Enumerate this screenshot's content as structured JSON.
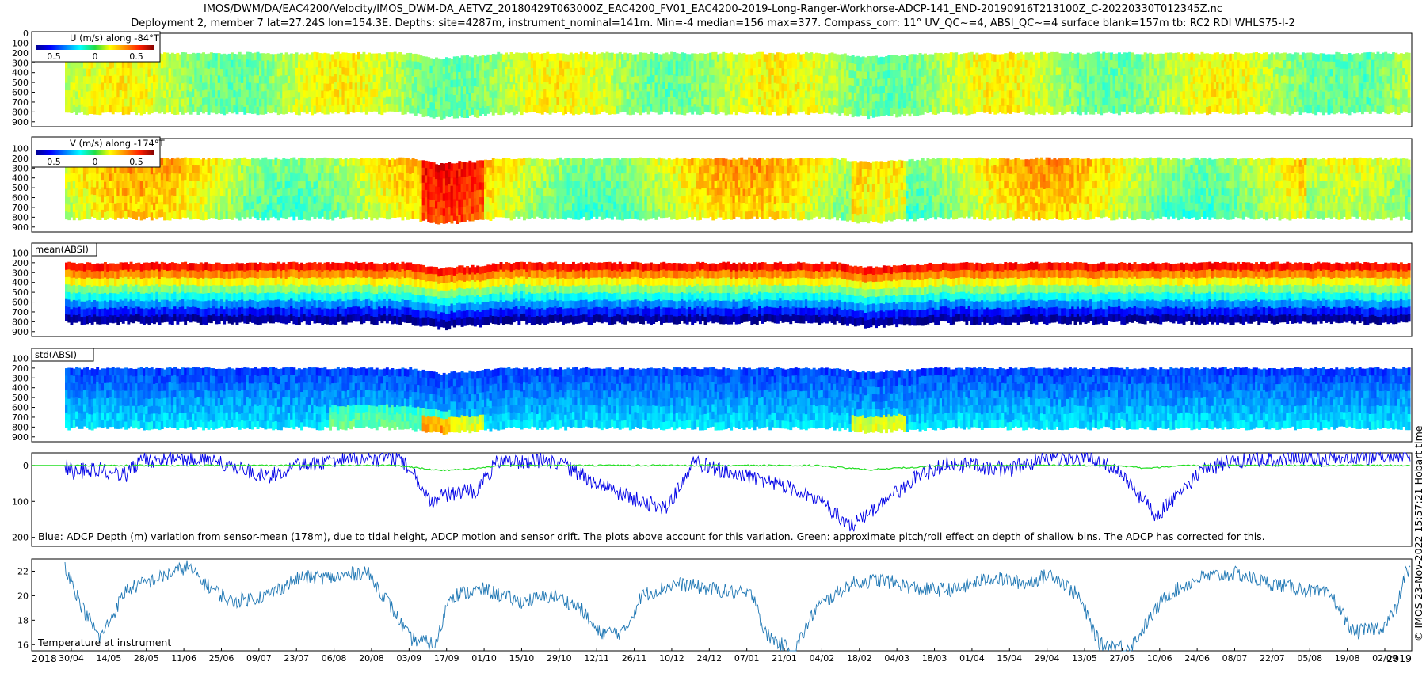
{
  "header": {
    "title": "IMOS/DWM/DA/EAC4200/Velocity/IMOS_DWM-DA_AETVZ_20180429T063000Z_EAC4200_FV01_EAC4200-2019-Long-Ranger-Workhorse-ADCP-141_END-20190916T213100Z_C-20220330T012345Z.nc",
    "subtitle": "Deployment 2, member 7 lat=27.24S lon=154.3E. Depths: site=4287m, instrument_nominal=141m. Min=-4 median=156 max=377. Compass_corr: 11° UV_QC~=4, ABSI_QC~=4 surface blank=157m tb: RC2 RDI WHLS75-I-2"
  },
  "credit": "© IMOS 23-Nov-2022 15:57:21 Hobart time",
  "colors": {
    "blue_series": "#0000e6",
    "green_series": "#22dd22",
    "temp_series": "#1f77b4"
  },
  "chart_data": [
    {
      "id": "u",
      "type": "heatmap",
      "legend_label": "U (m/s) along -84°T",
      "colorbar_ticks": [
        "0.5",
        "0",
        "0.5"
      ],
      "y_ticks": [
        "0",
        "100",
        "200",
        "300",
        "400",
        "500",
        "600",
        "700",
        "800",
        "900"
      ],
      "ylim": [
        0,
        950
      ]
    },
    {
      "id": "v",
      "type": "heatmap",
      "legend_label": "V (m/s) along -174°T",
      "colorbar_ticks": [
        "0.5",
        "0",
        "0.5"
      ],
      "y_ticks": [
        "100",
        "200",
        "300",
        "400",
        "500",
        "600",
        "700",
        "800",
        "900"
      ],
      "ylim": [
        0,
        950
      ]
    },
    {
      "id": "mean",
      "type": "heatmap",
      "legend_label": "mean(ABSI)",
      "y_ticks": [
        "100",
        "200",
        "300",
        "400",
        "500",
        "600",
        "700",
        "800",
        "900"
      ],
      "ylim": [
        0,
        950
      ]
    },
    {
      "id": "std",
      "type": "heatmap",
      "legend_label": "std(ABSI)",
      "y_ticks": [
        "100",
        "200",
        "300",
        "400",
        "500",
        "600",
        "700",
        "800",
        "900"
      ],
      "ylim": [
        0,
        950
      ]
    },
    {
      "id": "depth",
      "type": "line",
      "y_ticks": [
        "0",
        "100",
        "200"
      ],
      "ylim": [
        -35,
        225
      ],
      "annotation": "Blue: ADCP Depth (m) variation from sensor-mean (178m), due to tidal height, ADCP motion and sensor drift. The plots above account for this variation. Green: approximate pitch/roll effect on depth of shallow bins. The ADCP has corrected for this.",
      "series": [
        {
          "color": "#0000e6",
          "anchors": [
            [
              0,
              0
            ],
            [
              10,
              20
            ],
            [
              35,
              8
            ],
            [
              70,
              25
            ],
            [
              90,
              -15
            ],
            [
              160,
              -20
            ],
            [
              200,
              10
            ],
            [
              235,
              30
            ],
            [
              260,
              5
            ],
            [
              300,
              -10
            ],
            [
              330,
              -15
            ],
            [
              380,
              -18
            ],
            [
              395,
              10
            ],
            [
              420,
              100
            ],
            [
              438,
              80
            ],
            [
              470,
              70
            ],
            [
              495,
              -10
            ],
            [
              560,
              -15
            ],
            [
              610,
              50
            ],
            [
              660,
              100
            ],
            [
              690,
              120
            ],
            [
              720,
              -10
            ],
            [
              760,
              20
            ],
            [
              800,
              40
            ],
            [
              840,
              70
            ],
            [
              870,
              110
            ],
            [
              900,
              170
            ],
            [
              935,
              110
            ],
            [
              970,
              40
            ],
            [
              1010,
              -5
            ],
            [
              1050,
              5
            ],
            [
              1080,
              10
            ],
            [
              1120,
              -15
            ],
            [
              1150,
              -20
            ],
            [
              1180,
              -15
            ],
            [
              1210,
              20
            ],
            [
              1230,
              90
            ],
            [
              1250,
              140
            ],
            [
              1270,
              90
            ],
            [
              1300,
              20
            ],
            [
              1330,
              -10
            ],
            [
              1400,
              -20
            ],
            [
              1460,
              -15
            ],
            [
              1510,
              -25
            ],
            [
              1535,
              -25
            ]
          ],
          "noise": 22
        }
      ]
    },
    {
      "id": "temp",
      "type": "line",
      "y_ticks": [
        "16",
        "18",
        "20",
        "22"
      ],
      "ylim": [
        15.5,
        23
      ],
      "annotation": "Temperature at instrument",
      "x_ticks": [
        "30/04",
        "14/05",
        "28/05",
        "11/06",
        "25/06",
        "09/07",
        "23/07",
        "06/08",
        "20/08",
        "03/09",
        "17/09",
        "01/10",
        "15/10",
        "29/10",
        "12/11",
        "26/11",
        "10/12",
        "24/12",
        "07/01",
        "21/01",
        "04/02",
        "18/02",
        "04/03",
        "18/03",
        "01/04",
        "15/04",
        "29/04",
        "13/05",
        "27/05",
        "10/06",
        "24/06",
        "08/07",
        "22/07",
        "05/08",
        "19/08",
        "02/09"
      ],
      "year_start": "2018",
      "year_end": "2019",
      "series": [
        {
          "color": "#1f77b4",
          "anchors": [
            [
              0,
              22.5
            ],
            [
              20,
              19
            ],
            [
              40,
              16.5
            ],
            [
              70,
              20.5
            ],
            [
              110,
              21.5
            ],
            [
              140,
              22.4
            ],
            [
              160,
              21
            ],
            [
              190,
              19.5
            ],
            [
              230,
              20
            ],
            [
              270,
              21.5
            ],
            [
              310,
              21.5
            ],
            [
              345,
              22
            ],
            [
              370,
              19.5
            ],
            [
              395,
              16.5
            ],
            [
              425,
              16
            ],
            [
              440,
              20
            ],
            [
              480,
              20.5
            ],
            [
              520,
              19.5
            ],
            [
              560,
              20
            ],
            [
              590,
              19
            ],
            [
              610,
              17
            ],
            [
              640,
              17
            ],
            [
              660,
              20
            ],
            [
              700,
              21
            ],
            [
              745,
              20.5
            ],
            [
              790,
              20
            ],
            [
              800,
              17
            ],
            [
              820,
              16
            ],
            [
              835,
              15.5
            ],
            [
              860,
              19
            ],
            [
              900,
              21
            ],
            [
              935,
              21.3
            ],
            [
              980,
              20.5
            ],
            [
              1020,
              20.5
            ],
            [
              1060,
              21.5
            ],
            [
              1100,
              21
            ],
            [
              1130,
              21.8
            ],
            [
              1160,
              20
            ],
            [
              1185,
              16
            ],
            [
              1220,
              15.8
            ],
            [
              1260,
              20
            ],
            [
              1300,
              21.5
            ],
            [
              1340,
              21.8
            ],
            [
              1380,
              21
            ],
            [
              1420,
              20.5
            ],
            [
              1450,
              20
            ],
            [
              1475,
              17
            ],
            [
              1510,
              17.5
            ],
            [
              1525,
              19
            ],
            [
              1535,
              22
            ]
          ],
          "noise": 0.6
        }
      ]
    }
  ]
}
